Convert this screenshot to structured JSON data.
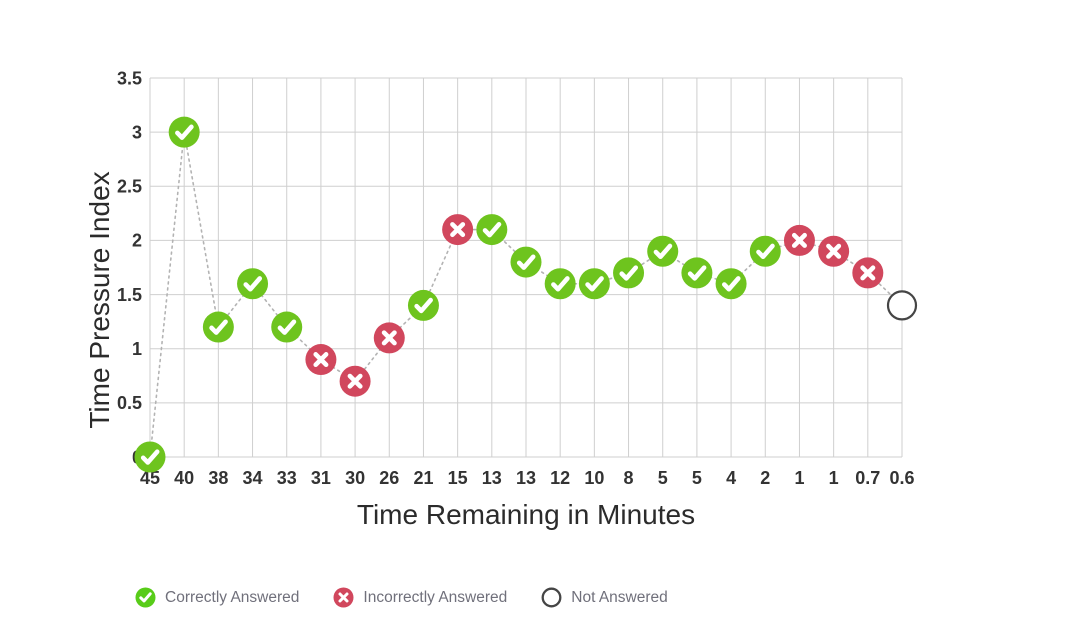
{
  "chart_data": {
    "type": "line",
    "title": "",
    "xlabel": "Time Remaining in Minutes",
    "ylabel": "Time Pressure Index",
    "x_categories": [
      "45",
      "40",
      "38",
      "34",
      "33",
      "31",
      "30",
      "26",
      "21",
      "15",
      "13",
      "13",
      "12",
      "10",
      "8",
      "5",
      "5",
      "4",
      "2",
      "1",
      "1",
      "0.7",
      "0.6"
    ],
    "y_ticks": [
      "0",
      "0.5",
      "1",
      "1.5",
      "2",
      "2.5",
      "3",
      "3.5"
    ],
    "ylim": [
      0,
      3.5
    ],
    "grid": true,
    "line_style": "dotted",
    "legend_position": "bottom",
    "points": [
      {
        "x": "45",
        "y": 0.0,
        "status": "correct"
      },
      {
        "x": "40",
        "y": 3.0,
        "status": "correct"
      },
      {
        "x": "38",
        "y": 1.2,
        "status": "correct"
      },
      {
        "x": "34",
        "y": 1.6,
        "status": "correct"
      },
      {
        "x": "33",
        "y": 1.2,
        "status": "correct"
      },
      {
        "x": "31",
        "y": 0.9,
        "status": "incorrect"
      },
      {
        "x": "30",
        "y": 0.7,
        "status": "incorrect"
      },
      {
        "x": "26",
        "y": 1.1,
        "status": "incorrect"
      },
      {
        "x": "21",
        "y": 1.4,
        "status": "correct"
      },
      {
        "x": "15",
        "y": 2.1,
        "status": "incorrect"
      },
      {
        "x": "13",
        "y": 2.1,
        "status": "correct"
      },
      {
        "x": "13",
        "y": 1.8,
        "status": "correct"
      },
      {
        "x": "12",
        "y": 1.6,
        "status": "correct"
      },
      {
        "x": "10",
        "y": 1.6,
        "status": "correct"
      },
      {
        "x": "8",
        "y": 1.7,
        "status": "correct"
      },
      {
        "x": "5",
        "y": 1.9,
        "status": "correct"
      },
      {
        "x": "5",
        "y": 1.7,
        "status": "correct"
      },
      {
        "x": "4",
        "y": 1.6,
        "status": "correct"
      },
      {
        "x": "2",
        "y": 1.9,
        "status": "correct"
      },
      {
        "x": "1",
        "y": 2.0,
        "status": "incorrect"
      },
      {
        "x": "1",
        "y": 1.9,
        "status": "incorrect"
      },
      {
        "x": "0.7",
        "y": 1.7,
        "status": "incorrect"
      },
      {
        "x": "0.6",
        "y": 1.4,
        "status": "not_answered"
      }
    ],
    "legend": [
      {
        "label": "Correctly Answered",
        "status": "correct"
      },
      {
        "label": "Incorrectly Answered",
        "status": "incorrect"
      },
      {
        "label": "Not Answered",
        "status": "not_answered"
      }
    ]
  },
  "colors": {
    "correct": "#6ec41e",
    "correct_legend": "#58cc19",
    "incorrect": "#d1475d",
    "not_answered_fill": "#ffffff",
    "not_answered_stroke": "#454545",
    "grid": "#cfcfcf",
    "connector": "#b3b3b3",
    "tick_text": "#333333",
    "axis_title_text": "#2b2b2b",
    "legend_text": "#70707b",
    "background": "#ffffff"
  }
}
